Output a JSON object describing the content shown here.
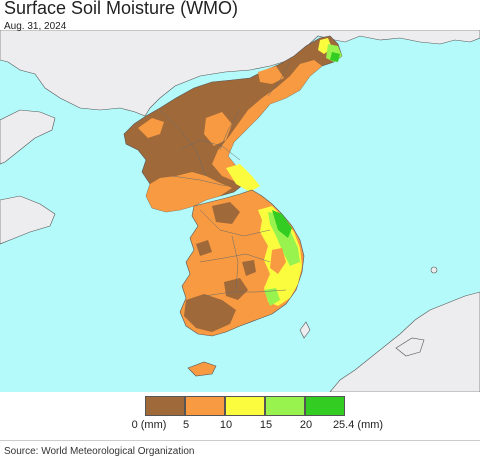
{
  "map": {
    "title": "Surface Soil Moisture (WMO)",
    "date": "Aug. 31, 2024",
    "ocean_color": "#b4fafa",
    "land_color": "#ededef"
  },
  "legend": {
    "bins": [
      {
        "label": "0 (mm)",
        "color": "#a0693a"
      },
      {
        "label": "5",
        "color": "#f79a41"
      },
      {
        "label": "10",
        "color": "#fcfc3f"
      },
      {
        "label": "15",
        "color": "#98f34f"
      },
      {
        "label": "20",
        "color": "#33cc22"
      },
      {
        "label": "25.4 (mm)",
        "color": null
      }
    ]
  },
  "source": "Source: World Meteorological Organization"
}
